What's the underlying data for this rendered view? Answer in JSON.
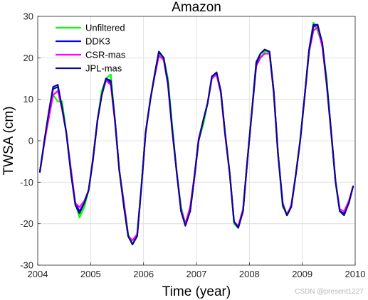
{
  "chart_data": {
    "type": "line",
    "title": "Amazon",
    "xlabel": "Time (year)",
    "ylabel": "TWSA (cm)",
    "xlim": [
      2004,
      2010
    ],
    "ylim": [
      -30,
      30
    ],
    "xticks": [
      2004,
      2005,
      2006,
      2007,
      2008,
      2009,
      2010
    ],
    "yticks": [
      -30,
      -20,
      -10,
      0,
      10,
      20,
      30
    ],
    "grid": true,
    "legend_position": "top-left",
    "x": [
      2004.04,
      2004.13,
      2004.21,
      2004.29,
      2004.38,
      2004.46,
      2004.54,
      2004.63,
      2004.71,
      2004.79,
      2004.88,
      2004.96,
      2005.04,
      2005.13,
      2005.21,
      2005.29,
      2005.38,
      2005.46,
      2005.54,
      2005.63,
      2005.71,
      2005.79,
      2005.88,
      2005.96,
      2006.04,
      2006.13,
      2006.21,
      2006.29,
      2006.38,
      2006.46,
      2006.54,
      2006.63,
      2006.71,
      2006.79,
      2006.88,
      2006.96,
      2007.04,
      2007.13,
      2007.21,
      2007.29,
      2007.38,
      2007.46,
      2007.54,
      2007.63,
      2007.71,
      2007.79,
      2007.88,
      2007.96,
      2008.04,
      2008.13,
      2008.21,
      2008.29,
      2008.38,
      2008.46,
      2008.54,
      2008.63,
      2008.71,
      2008.79,
      2008.88,
      2008.96,
      2009.04,
      2009.13,
      2009.21,
      2009.29,
      2009.38,
      2009.46,
      2009.54,
      2009.63,
      2009.71,
      2009.79,
      2009.88,
      2009.96
    ],
    "series": [
      {
        "name": "Unfiltered",
        "color": "#00ff00",
        "values": [
          -7.5,
          0,
          6,
          11,
          9.5,
          9.5,
          2,
          -7,
          -15,
          -18.5,
          -16,
          -12,
          -5,
          5,
          12,
          15,
          16,
          5,
          -7,
          -15,
          -22.5,
          -25,
          -22.5,
          -11,
          2,
          10,
          16,
          21,
          20,
          15,
          4,
          -8,
          -16,
          -20,
          -17,
          -9,
          0,
          4,
          9,
          15,
          16,
          12,
          2,
          -8,
          -20,
          -21,
          -17,
          -5,
          6,
          18,
          20,
          21.5,
          21.5,
          12,
          -3,
          -16,
          -17.5,
          -16,
          -8,
          0,
          10,
          22,
          28.5,
          26.5,
          23,
          15,
          3,
          -10,
          -17,
          -17.5,
          -15,
          -11
        ]
      },
      {
        "name": "DDK3",
        "color": "#0000ff",
        "values": [
          -7.5,
          0,
          6.5,
          12.5,
          13,
          8,
          2,
          -8,
          -15,
          -17,
          -15,
          -12,
          -5,
          5,
          11,
          15,
          14,
          5,
          -7,
          -16,
          -23,
          -25,
          -23,
          -11,
          2,
          10,
          16,
          21.5,
          20,
          14,
          3,
          -8,
          -17,
          -20,
          -17,
          -9,
          0,
          5,
          9,
          15,
          16.5,
          12,
          2,
          -8,
          -19.5,
          -21,
          -17,
          -5,
          6,
          19,
          21,
          22,
          21.5,
          12,
          -3,
          -15,
          -18,
          -16,
          -8,
          0,
          10,
          22,
          28,
          28,
          23,
          14,
          3,
          -10,
          -17,
          -17.5,
          -15,
          -11
        ]
      },
      {
        "name": "CSR-mas",
        "color": "#ff00ff",
        "values": [
          -7.5,
          0,
          5.5,
          11,
          12,
          7.5,
          2,
          -7,
          -15,
          -16,
          -14.5,
          -12,
          -4.5,
          5,
          11,
          14.5,
          13.5,
          4.5,
          -7,
          -15,
          -23,
          -24,
          -22.5,
          -11,
          2,
          10,
          15.5,
          20.5,
          19.5,
          13.5,
          2.5,
          -8,
          -16.5,
          -20,
          -16,
          -8.5,
          0.5,
          5,
          9,
          15,
          16,
          11.5,
          1.5,
          -8,
          -19.5,
          -20.5,
          -16.5,
          -5,
          6,
          18,
          20,
          21,
          21,
          11.5,
          -3,
          -15,
          -18,
          -15.5,
          -8,
          0,
          10,
          21.5,
          26.5,
          27.5,
          22.5,
          13.5,
          2.5,
          -10,
          -16.5,
          -17,
          -14.5,
          -11
        ]
      },
      {
        "name": "JPL-mas",
        "color": "#0a0a8c",
        "values": [
          -7.5,
          0.5,
          7,
          13,
          13.5,
          8,
          2,
          -8,
          -15.5,
          -17.5,
          -15,
          -12,
          -5,
          5,
          11,
          15,
          14.5,
          5,
          -7,
          -16,
          -23,
          -25,
          -23,
          -11,
          2,
          10,
          16,
          21.5,
          20,
          14,
          3,
          -8,
          -17,
          -20.5,
          -17,
          -9,
          0,
          5,
          9,
          15.5,
          16.5,
          12,
          2,
          -8,
          -19.5,
          -21,
          -17,
          -5,
          6,
          18.5,
          21,
          22,
          21.5,
          12,
          -3,
          -15.5,
          -18,
          -16,
          -8,
          0,
          10,
          22,
          27.5,
          28,
          23.5,
          14,
          3,
          -10,
          -17,
          -18,
          -15,
          -11
        ]
      }
    ]
  },
  "watermark": "CSDN @present1227"
}
